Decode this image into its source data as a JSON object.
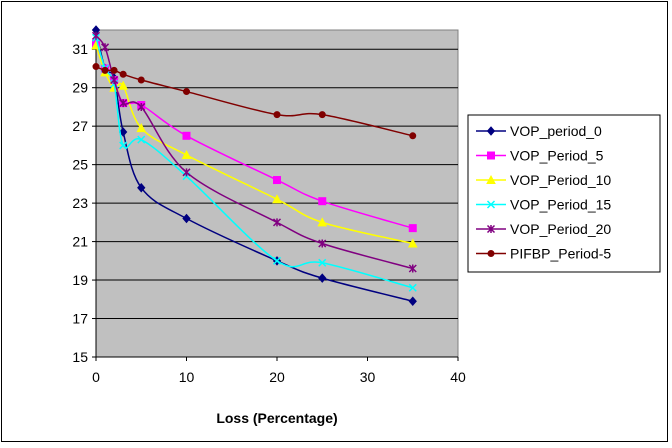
{
  "chart_data": {
    "type": "line",
    "xlabel": "Loss (Percentage)",
    "ylabel": "",
    "xlim": [
      0,
      40
    ],
    "ylim": [
      15,
      32
    ],
    "xticks": [
      0,
      10,
      20,
      30,
      40
    ],
    "yticks": [
      15,
      17,
      19,
      21,
      23,
      25,
      27,
      29,
      31
    ],
    "grid": "horizontal",
    "plot_background": "#c0c0c0",
    "legend_position": "right",
    "series": [
      {
        "name": "VOP_period_0",
        "color": "#000080",
        "marker": "diamond",
        "x": [
          0,
          1,
          2,
          3,
          5,
          10,
          20,
          25,
          35
        ],
        "y": [
          32.0,
          30.0,
          29.5,
          26.7,
          23.8,
          22.2,
          20.0,
          19.1,
          17.9
        ]
      },
      {
        "name": "VOP_Period_5",
        "color": "#ff00ff",
        "marker": "square",
        "x": [
          0,
          1,
          2,
          3,
          5,
          10,
          20,
          25,
          35
        ],
        "y": [
          31.3,
          30.0,
          29.4,
          28.2,
          28.1,
          26.5,
          24.2,
          23.1,
          21.7
        ]
      },
      {
        "name": "VOP_Period_10",
        "color": "#ffff00",
        "marker": "triangle",
        "x": [
          0,
          1,
          2,
          3,
          5,
          10,
          20,
          25,
          35
        ],
        "y": [
          31.2,
          29.8,
          29.0,
          29.1,
          26.9,
          25.5,
          23.2,
          22.0,
          20.9
        ]
      },
      {
        "name": "VOP_Period_15",
        "color": "#00ffff",
        "marker": "x",
        "x": [
          0,
          1,
          2,
          3,
          5,
          10,
          20,
          25,
          35
        ],
        "y": [
          31.6,
          30.0,
          29.2,
          26.0,
          26.3,
          24.4,
          20.0,
          19.9,
          18.6
        ]
      },
      {
        "name": "VOP_Period_20",
        "color": "#800080",
        "marker": "star",
        "x": [
          0,
          1,
          2,
          3,
          5,
          10,
          20,
          25,
          35
        ],
        "y": [
          31.7,
          31.1,
          29.4,
          28.2,
          28.0,
          24.6,
          22.0,
          20.9,
          19.6
        ]
      },
      {
        "name": "PIFBP_Period-5",
        "color": "#800000",
        "marker": "circle",
        "x": [
          0,
          1,
          2,
          3,
          5,
          10,
          20,
          25,
          35
        ],
        "y": [
          30.1,
          29.9,
          29.9,
          29.7,
          29.4,
          28.8,
          27.6,
          27.6,
          26.5
        ]
      }
    ]
  }
}
